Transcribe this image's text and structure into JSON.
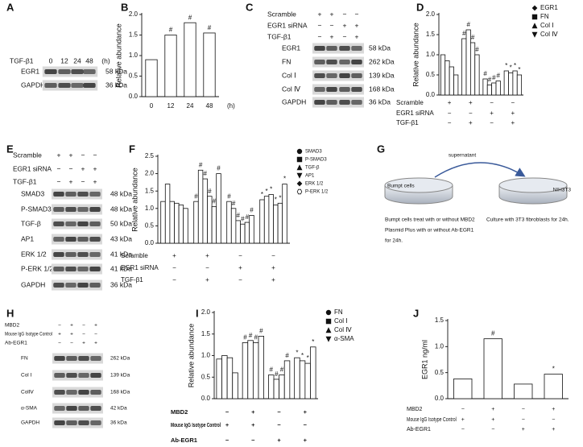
{
  "blots": [
    {
      "label": "A",
      "conditions": [
        {
          "name": "TGF-β1",
          "signs": [
            "0",
            "12",
            "24",
            "48"
          ]
        }
      ],
      "unit": "(h)",
      "rows": [
        {
          "name": "EGR1",
          "size": "58 kDa"
        },
        {
          "name": "GAPDH",
          "size": "36 kDa"
        }
      ]
    },
    {
      "label": "C",
      "conditions": [
        {
          "name": "Scramble",
          "signs": [
            "+",
            "+",
            "−",
            "−"
          ]
        },
        {
          "name": "EGR1 siRNA",
          "signs": [
            "−",
            "−",
            "+",
            "+"
          ]
        },
        {
          "name": "TGF-β1",
          "signs": [
            "−",
            "+",
            "−",
            "+"
          ]
        }
      ],
      "rows": [
        {
          "name": "EGR1",
          "size": "58 kDa"
        },
        {
          "name": "FN",
          "size": "262 kDa"
        },
        {
          "name": "Col Ⅰ",
          "size": "139 kDa"
        },
        {
          "name": "Col Ⅳ",
          "size": "168 kDa"
        },
        {
          "name": "GAPDH",
          "size": "36 kDa"
        }
      ]
    },
    {
      "label": "E",
      "conditions": [
        {
          "name": "Scramble",
          "signs": [
            "+",
            "+",
            "−",
            "−"
          ]
        },
        {
          "name": "EGR1 siRNA",
          "signs": [
            "−",
            "−",
            "+",
            "+"
          ]
        },
        {
          "name": "TGF-β1",
          "signs": [
            "−",
            "+",
            "−",
            "+"
          ]
        }
      ],
      "rows": [
        {
          "name": "SMAD3",
          "size": "48 kDa"
        },
        {
          "name": "P-SMAD3",
          "size": "48 kDa"
        },
        {
          "name": "TGF-β",
          "size": "50 kDa"
        },
        {
          "name": "AP1",
          "size": "43 kDa"
        },
        {
          "name": "ERK 1/2",
          "size": "41 kDa"
        },
        {
          "name": "P-ERK 1/2",
          "size": "41 kDa"
        },
        {
          "name": "GAPDH",
          "size": "36 kDa"
        }
      ]
    },
    {
      "label": "H",
      "conditions": [
        {
          "name": "MBD2",
          "signs": [
            "−",
            "+",
            "−",
            "+"
          ]
        },
        {
          "name": "Mouse IgG Isotype Control",
          "signs": [
            "+",
            "+",
            "−",
            "−"
          ]
        },
        {
          "name": "Ab-EGR1",
          "signs": [
            "−",
            "−",
            "+",
            "+"
          ]
        }
      ],
      "rows": [
        {
          "name": "FN",
          "size": "262 kDa"
        },
        {
          "name": "Col Ⅰ",
          "size": "139 kDa"
        },
        {
          "name": "ColⅣ",
          "size": "168 kDa"
        },
        {
          "name": "α-SMA",
          "size": "42 kDa"
        },
        {
          "name": "GAPDH",
          "size": "36 kDa"
        }
      ]
    }
  ],
  "chart_data": [
    {
      "label": "B",
      "type": "bar",
      "ylabel": "Relative abundance",
      "categories": [
        "0",
        "12",
        "24",
        "48"
      ],
      "xlabel": "(h)",
      "values": [
        0.9,
        1.5,
        1.8,
        1.55
      ],
      "annotations": [
        null,
        "#",
        "#",
        "#"
      ],
      "color": "#ffffff",
      "ylim": [
        0,
        2
      ],
      "yticks": [
        {
          "value": 0,
          "label": "0.0"
        },
        0.5,
        {
          "value": 1,
          "label": "1.0"
        },
        1.5,
        {
          "value": 2,
          "label": "2.0"
        }
      ]
    },
    {
      "label": "D",
      "type": "bar",
      "ylabel": "Relative abundance",
      "series": [
        {
          "name": "EGR1",
          "color": "#ffffff",
          "marker": "diamond",
          "values": [
            1.0,
            1.4,
            0.4,
            0.6
          ],
          "annotations": [
            null,
            "#",
            "#",
            "*"
          ]
        },
        {
          "name": "FN",
          "color": "#ffffff",
          "marker": "square",
          "values": [
            0.85,
            1.62,
            0.25,
            0.55
          ],
          "annotations": [
            null,
            "#",
            "#",
            "*"
          ]
        },
        {
          "name": "Col Ⅰ",
          "color": "#ffffff",
          "marker": "triangle-up",
          "values": [
            0.7,
            1.3,
            0.3,
            0.6
          ],
          "annotations": [
            null,
            "#",
            "#",
            "*"
          ]
        },
        {
          "name": "Col Ⅳ",
          "color": "#ffffff",
          "marker": "triangle-down",
          "values": [
            0.5,
            1.0,
            0.35,
            0.5
          ],
          "annotations": [
            null,
            "#",
            "#",
            "*"
          ]
        }
      ],
      "conditions": [
        {
          "name": "Scramble",
          "signs": [
            "+",
            "+",
            "−",
            "−"
          ]
        },
        {
          "name": "EGR1 siRNA",
          "signs": [
            "−",
            "−",
            "+",
            "+"
          ]
        },
        {
          "name": "TGF-β1",
          "signs": [
            "−",
            "+",
            "−",
            "+"
          ]
        }
      ],
      "ylim": [
        0,
        2
      ],
      "yticks": [
        {
          "value": 0,
          "label": "0.0"
        },
        0.5,
        {
          "value": 1,
          "label": "1.0"
        },
        1.5,
        {
          "value": 2,
          "label": "2.0"
        }
      ]
    },
    {
      "label": "F",
      "type": "bar",
      "ylabel": "Relative abundance",
      "series": [
        {
          "name": "SMAD3",
          "color": "#ffffff",
          "marker": "circle",
          "values": [
            1.2,
            1.2,
            1.2,
            1.25
          ],
          "annotations": [
            null,
            "#",
            "#",
            "*"
          ]
        },
        {
          "name": "P-SMAD3",
          "color": "#ffffff",
          "marker": "square",
          "values": [
            1.7,
            2.1,
            1.0,
            1.35
          ],
          "annotations": [
            null,
            "#",
            "#",
            "*"
          ]
        },
        {
          "name": "TGF-β",
          "color": "#ffffff",
          "marker": "triangle-up",
          "values": [
            1.2,
            1.85,
            0.65,
            1.4
          ],
          "annotations": [
            null,
            "#",
            "#",
            "*"
          ]
        },
        {
          "name": "AP1",
          "color": "#ffffff",
          "marker": "triangle-down",
          "values": [
            1.15,
            1.35,
            0.55,
            1.1
          ],
          "annotations": [
            null,
            "#",
            "#",
            "*"
          ]
        },
        {
          "name": "ERK 1/2",
          "color": "#ffffff",
          "marker": "diamond",
          "values": [
            1.1,
            1.05,
            0.6,
            1.15
          ],
          "annotations": [
            null,
            "#",
            "#",
            "*"
          ]
        },
        {
          "name": "P-ERK 1/2",
          "color": "#ffffff",
          "marker": "hexagon",
          "values": [
            1.0,
            2.0,
            0.8,
            1.7
          ],
          "annotations": [
            null,
            "#",
            "#",
            "*"
          ]
        }
      ],
      "conditions": [
        {
          "name": "Scramble",
          "signs": [
            "+",
            "+",
            "−",
            "−"
          ]
        },
        {
          "name": "EGR1 siRNA",
          "signs": [
            "−",
            "−",
            "+",
            "+"
          ]
        },
        {
          "name": "TGF-β1",
          "signs": [
            "−",
            "+",
            "−",
            "+"
          ]
        }
      ],
      "ylim": [
        0,
        2.5
      ],
      "yticks": [
        {
          "value": 0,
          "label": "0.0"
        },
        0.5,
        {
          "value": 1,
          "label": "1.0"
        },
        1.5,
        {
          "value": 2,
          "label": "2.0"
        },
        2.5
      ]
    },
    {
      "label": "I",
      "type": "bar",
      "ylabel": "Relative abundance",
      "series": [
        {
          "name": "FN",
          "color": "#ffffff",
          "marker": "circle",
          "values": [
            0.92,
            1.3,
            0.55,
            0.95
          ],
          "annotations": [
            null,
            "#",
            "#",
            "*"
          ]
        },
        {
          "name": "Col Ⅰ",
          "color": "#ffffff",
          "marker": "square",
          "values": [
            1.0,
            1.35,
            0.45,
            0.88
          ],
          "annotations": [
            null,
            "#",
            "#",
            "*"
          ]
        },
        {
          "name": "Col Ⅳ",
          "color": "#ffffff",
          "marker": "triangle-up",
          "values": [
            0.95,
            1.3,
            0.55,
            0.82
          ],
          "annotations": [
            null,
            "#",
            "#",
            "*"
          ]
        },
        {
          "name": "α-SMA",
          "color": "#ffffff",
          "marker": "triangle-down",
          "values": [
            0.6,
            1.45,
            0.88,
            1.2
          ],
          "annotations": [
            null,
            "#",
            "#",
            "*"
          ]
        }
      ],
      "conditions": [
        {
          "name": "MBD2",
          "signs": [
            "−",
            "+",
            "−",
            "+"
          ]
        },
        {
          "name": "Mouse IgG Isotype Control",
          "signs": [
            "+",
            "+",
            "−",
            "−"
          ]
        },
        {
          "name": "Ab-EGR1",
          "signs": [
            "−",
            "−",
            "+",
            "+"
          ]
        }
      ],
      "ylim": [
        0,
        2
      ],
      "yticks": [
        {
          "value": 0,
          "label": "0.0"
        },
        0.5,
        {
          "value": 1,
          "label": "1.0"
        },
        1.5,
        {
          "value": 2,
          "label": "2.0"
        }
      ]
    },
    {
      "label": "J",
      "type": "bar",
      "ylabel": "EGR1 ng/ml",
      "values": [
        0.38,
        1.15,
        0.28,
        0.47
      ],
      "annotations": [
        null,
        "#",
        null,
        "*"
      ],
      "color": "#ffffff",
      "conditions": [
        {
          "name": "MBD2",
          "signs": [
            "−",
            "+",
            "−",
            "+"
          ]
        },
        {
          "name": "Mouse IgG Isotype Control",
          "signs": [
            "+",
            "+",
            "−",
            "−"
          ]
        },
        {
          "name": "Ab-EGR1",
          "signs": [
            "−",
            "−",
            "+",
            "+"
          ]
        }
      ],
      "ylim": [
        0,
        1.5
      ],
      "yticks": [
        {
          "value": 0,
          "label": "0.0"
        },
        0.5,
        {
          "value": 1,
          "label": "1.0"
        },
        1.5
      ]
    }
  ],
  "diagram": {
    "label": "G",
    "arrow_label": "supernatant",
    "left_dish": "Bumpt cells",
    "right_dish": "NIH3T3",
    "left_caption": [
      "Bumpt cells treat with or without MBD2",
      "Plasmid Plus with or without Ab-EGR1",
      "for 24h."
    ],
    "right_caption": "Culture with 3T3 fibroblasts for 24h."
  }
}
